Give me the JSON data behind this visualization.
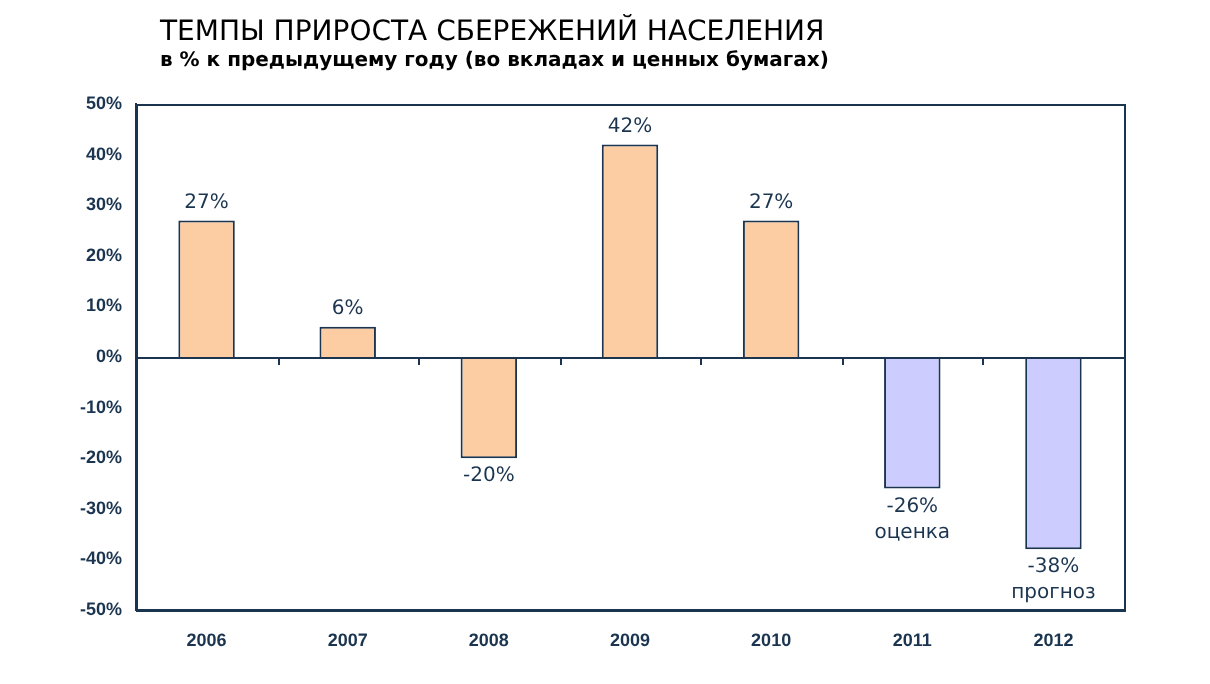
{
  "chart_data": {
    "type": "bar",
    "title": "ТЕМПЫ ПРИРОСТА СБЕРЕЖЕНИЙ НАСЕЛЕНИЯ",
    "subtitle": "в % к предыдущему году (во вкладах и ценных бумагах)",
    "categories": [
      "2006",
      "2007",
      "2008",
      "2009",
      "2010",
      "2011",
      "2012"
    ],
    "values": [
      27,
      6,
      -20,
      42,
      27,
      -26,
      -38
    ],
    "colors": [
      "#fccca2",
      "#fccca2",
      "#fccca2",
      "#fccca2",
      "#fccca2",
      "#ccccff",
      "#ccccff"
    ],
    "value_labels": [
      "27%",
      "6%",
      "-20%",
      "42%",
      "27%",
      "-26%",
      "-38%"
    ],
    "annotations": [
      {
        "text": "оценка",
        "x": "2011",
        "y": -26
      },
      {
        "text": "прогноз",
        "x": "2012",
        "y": -38
      }
    ],
    "ylim": [
      -50,
      50
    ],
    "yticks": [
      {
        "value": -50,
        "label": "-50%"
      },
      {
        "value": -40,
        "label": "-40%"
      },
      {
        "value": -30,
        "label": "-30%"
      },
      {
        "value": -20,
        "label": "-20%"
      },
      {
        "value": -10,
        "label": "-10%"
      },
      {
        "value": 0,
        "label": "0%"
      },
      {
        "value": 10,
        "label": "10%"
      },
      {
        "value": 20,
        "label": "20%"
      },
      {
        "value": 30,
        "label": "30%"
      },
      {
        "value": 40,
        "label": "40%"
      },
      {
        "value": 50,
        "label": "50%"
      }
    ],
    "grid": false,
    "legend": false
  }
}
